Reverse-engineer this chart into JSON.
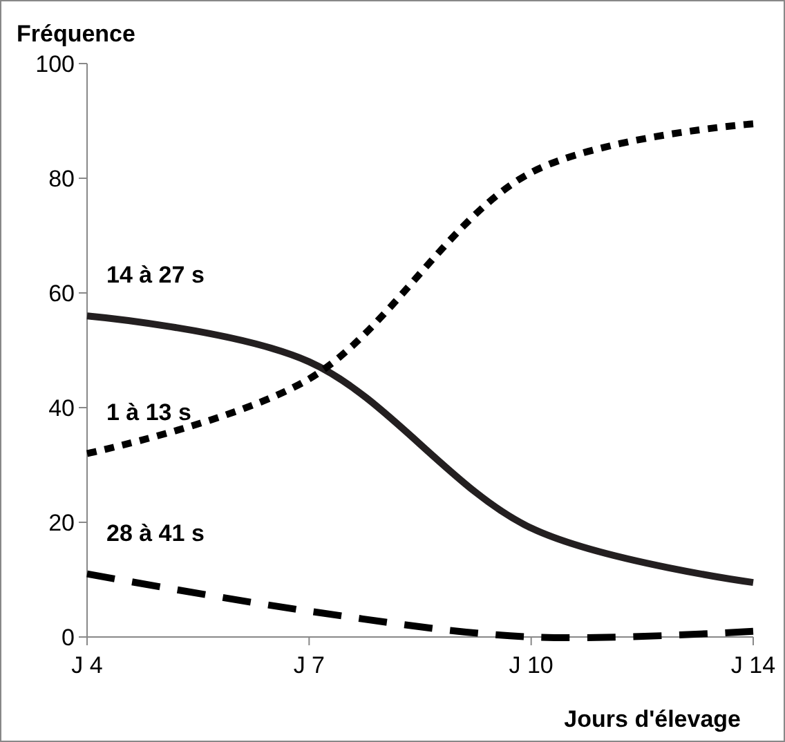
{
  "chart_data": {
    "type": "line",
    "ylabel": "Fréquence",
    "xlabel": "Jours d'élevage",
    "categories": [
      "J 4",
      "J 7",
      "J 10",
      "J 14"
    ],
    "series": [
      {
        "name": "14 à 27 s",
        "color": "#231f20",
        "values": [
          56,
          48,
          19,
          9.5
        ],
        "line_style": "solid"
      },
      {
        "name": "1 à 13 s",
        "color": "#000000",
        "values": [
          32,
          45,
          81,
          89.5
        ],
        "line_style": "dotted"
      },
      {
        "name": "28 à 41 s",
        "color": "#000000",
        "values": [
          11,
          4.5,
          0,
          1
        ],
        "line_style": "dashed"
      }
    ],
    "ylim": [
      0,
      100
    ],
    "yticks": [
      0,
      20,
      40,
      60,
      80,
      100
    ],
    "grid": false,
    "legend": false,
    "marker": "none"
  }
}
